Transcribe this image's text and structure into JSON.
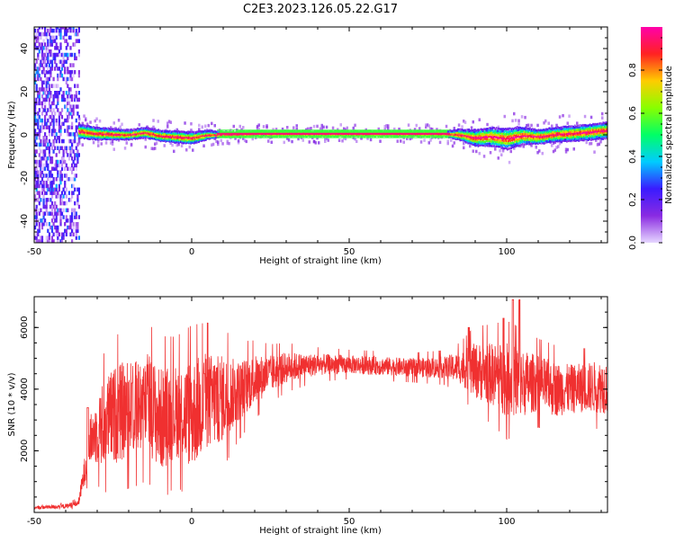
{
  "title": "C2E3.2023.126.05.22.G17",
  "colors": {
    "snr_line": "#f03030",
    "frame": "#000000"
  },
  "chart_data": [
    {
      "type": "heatmap",
      "xlabel": "Height of straight line (km)",
      "ylabel": "Frequency (Hz)",
      "xlim": [
        -50,
        132
      ],
      "ylim": [
        -50,
        50
      ],
      "x_ticks": [
        "-50",
        "0",
        "50",
        "100"
      ],
      "y_ticks": [
        "-40",
        "-20",
        "0",
        "20",
        "40"
      ],
      "colorbar": {
        "label": "Normalized spectral amplitude",
        "range": [
          0,
          1
        ],
        "ticks": [
          "0.0",
          "0.2",
          "0.4",
          "0.6",
          "0.8"
        ],
        "palette": [
          "#e6d6ff",
          "#8a2be2",
          "#3a1bff",
          "#00ccff",
          "#00ff66",
          "#88ff00",
          "#ffcc00",
          "#ff2222",
          "#ff00aa"
        ]
      },
      "features": {
        "noise_region_x": [
          -50,
          -36
        ],
        "band_center_hz": [
          [
            -38,
            2
          ],
          [
            -30,
            0.5
          ],
          [
            -20,
            0
          ],
          [
            -15,
            1
          ],
          [
            -10,
            -0.5
          ],
          [
            -5,
            -1
          ],
          [
            0,
            -1.5
          ],
          [
            5,
            0
          ],
          [
            20,
            0.5
          ],
          [
            40,
            0.5
          ],
          [
            60,
            0.5
          ],
          [
            80,
            0.5
          ],
          [
            85,
            0
          ],
          [
            90,
            -1.5
          ],
          [
            95,
            -1
          ],
          [
            100,
            -2
          ],
          [
            105,
            -0.5
          ],
          [
            110,
            -1
          ],
          [
            115,
            0
          ],
          [
            120,
            0.5
          ],
          [
            125,
            1
          ],
          [
            132,
            2
          ]
        ],
        "band_halfwidth_hz": [
          [
            -38,
            3
          ],
          [
            -20,
            2
          ],
          [
            0,
            2.5
          ],
          [
            10,
            1
          ],
          [
            80,
            1
          ],
          [
            90,
            3.5
          ],
          [
            100,
            4.5
          ],
          [
            110,
            3
          ],
          [
            132,
            3.5
          ]
        ]
      }
    },
    {
      "type": "line",
      "xlabel": "Height of straight line (km)",
      "ylabel": "SNR (10 * v/v)",
      "xlim": [
        -50,
        132
      ],
      "ylim": [
        0,
        7000
      ],
      "x_ticks": [
        "-50",
        "0",
        "50",
        "100"
      ],
      "y_ticks": [
        "2000",
        "4000",
        "6000"
      ],
      "series": [
        {
          "envelope": [
            [
              -50,
              150,
              50
            ],
            [
              -40,
              200,
              80
            ],
            [
              -36,
              300,
              100
            ],
            [
              -35,
              800,
              300
            ],
            [
              -32,
              2400,
              800
            ],
            [
              -28,
              2900,
              1400
            ],
            [
              -24,
              3200,
              1600
            ],
            [
              -18,
              3400,
              1600
            ],
            [
              -14,
              3600,
              1600
            ],
            [
              -10,
              3000,
              1700
            ],
            [
              -5,
              3300,
              1500
            ],
            [
              0,
              3200,
              1800
            ],
            [
              5,
              3600,
              1600
            ],
            [
              10,
              3700,
              1400
            ],
            [
              15,
              3950,
              1000
            ],
            [
              20,
              4300,
              800
            ],
            [
              25,
              4500,
              600
            ],
            [
              30,
              4700,
              500
            ],
            [
              40,
              4800,
              350
            ],
            [
              50,
              4800,
              300
            ],
            [
              60,
              4750,
              300
            ],
            [
              70,
              4700,
              300
            ],
            [
              80,
              4700,
              350
            ],
            [
              85,
              4700,
              500
            ],
            [
              90,
              4600,
              900
            ],
            [
              95,
              4500,
              1000
            ],
            [
              100,
              4300,
              1200
            ],
            [
              105,
              4200,
              1100
            ],
            [
              110,
              4200,
              900
            ],
            [
              115,
              4000,
              900
            ],
            [
              120,
              4000,
              800
            ],
            [
              125,
              4050,
              800
            ],
            [
              132,
              4100,
              900
            ]
          ],
          "peaks": [
            [
              102,
              6900
            ],
            [
              104,
              6900
            ],
            [
              99,
              6300
            ],
            [
              -14,
              4800
            ],
            [
              -19,
              4200
            ],
            [
              -29,
              3700
            ],
            [
              -33,
              3400
            ],
            [
              4,
              4500
            ],
            [
              8,
              4700
            ],
            [
              88,
              6000
            ]
          ]
        }
      ]
    }
  ]
}
